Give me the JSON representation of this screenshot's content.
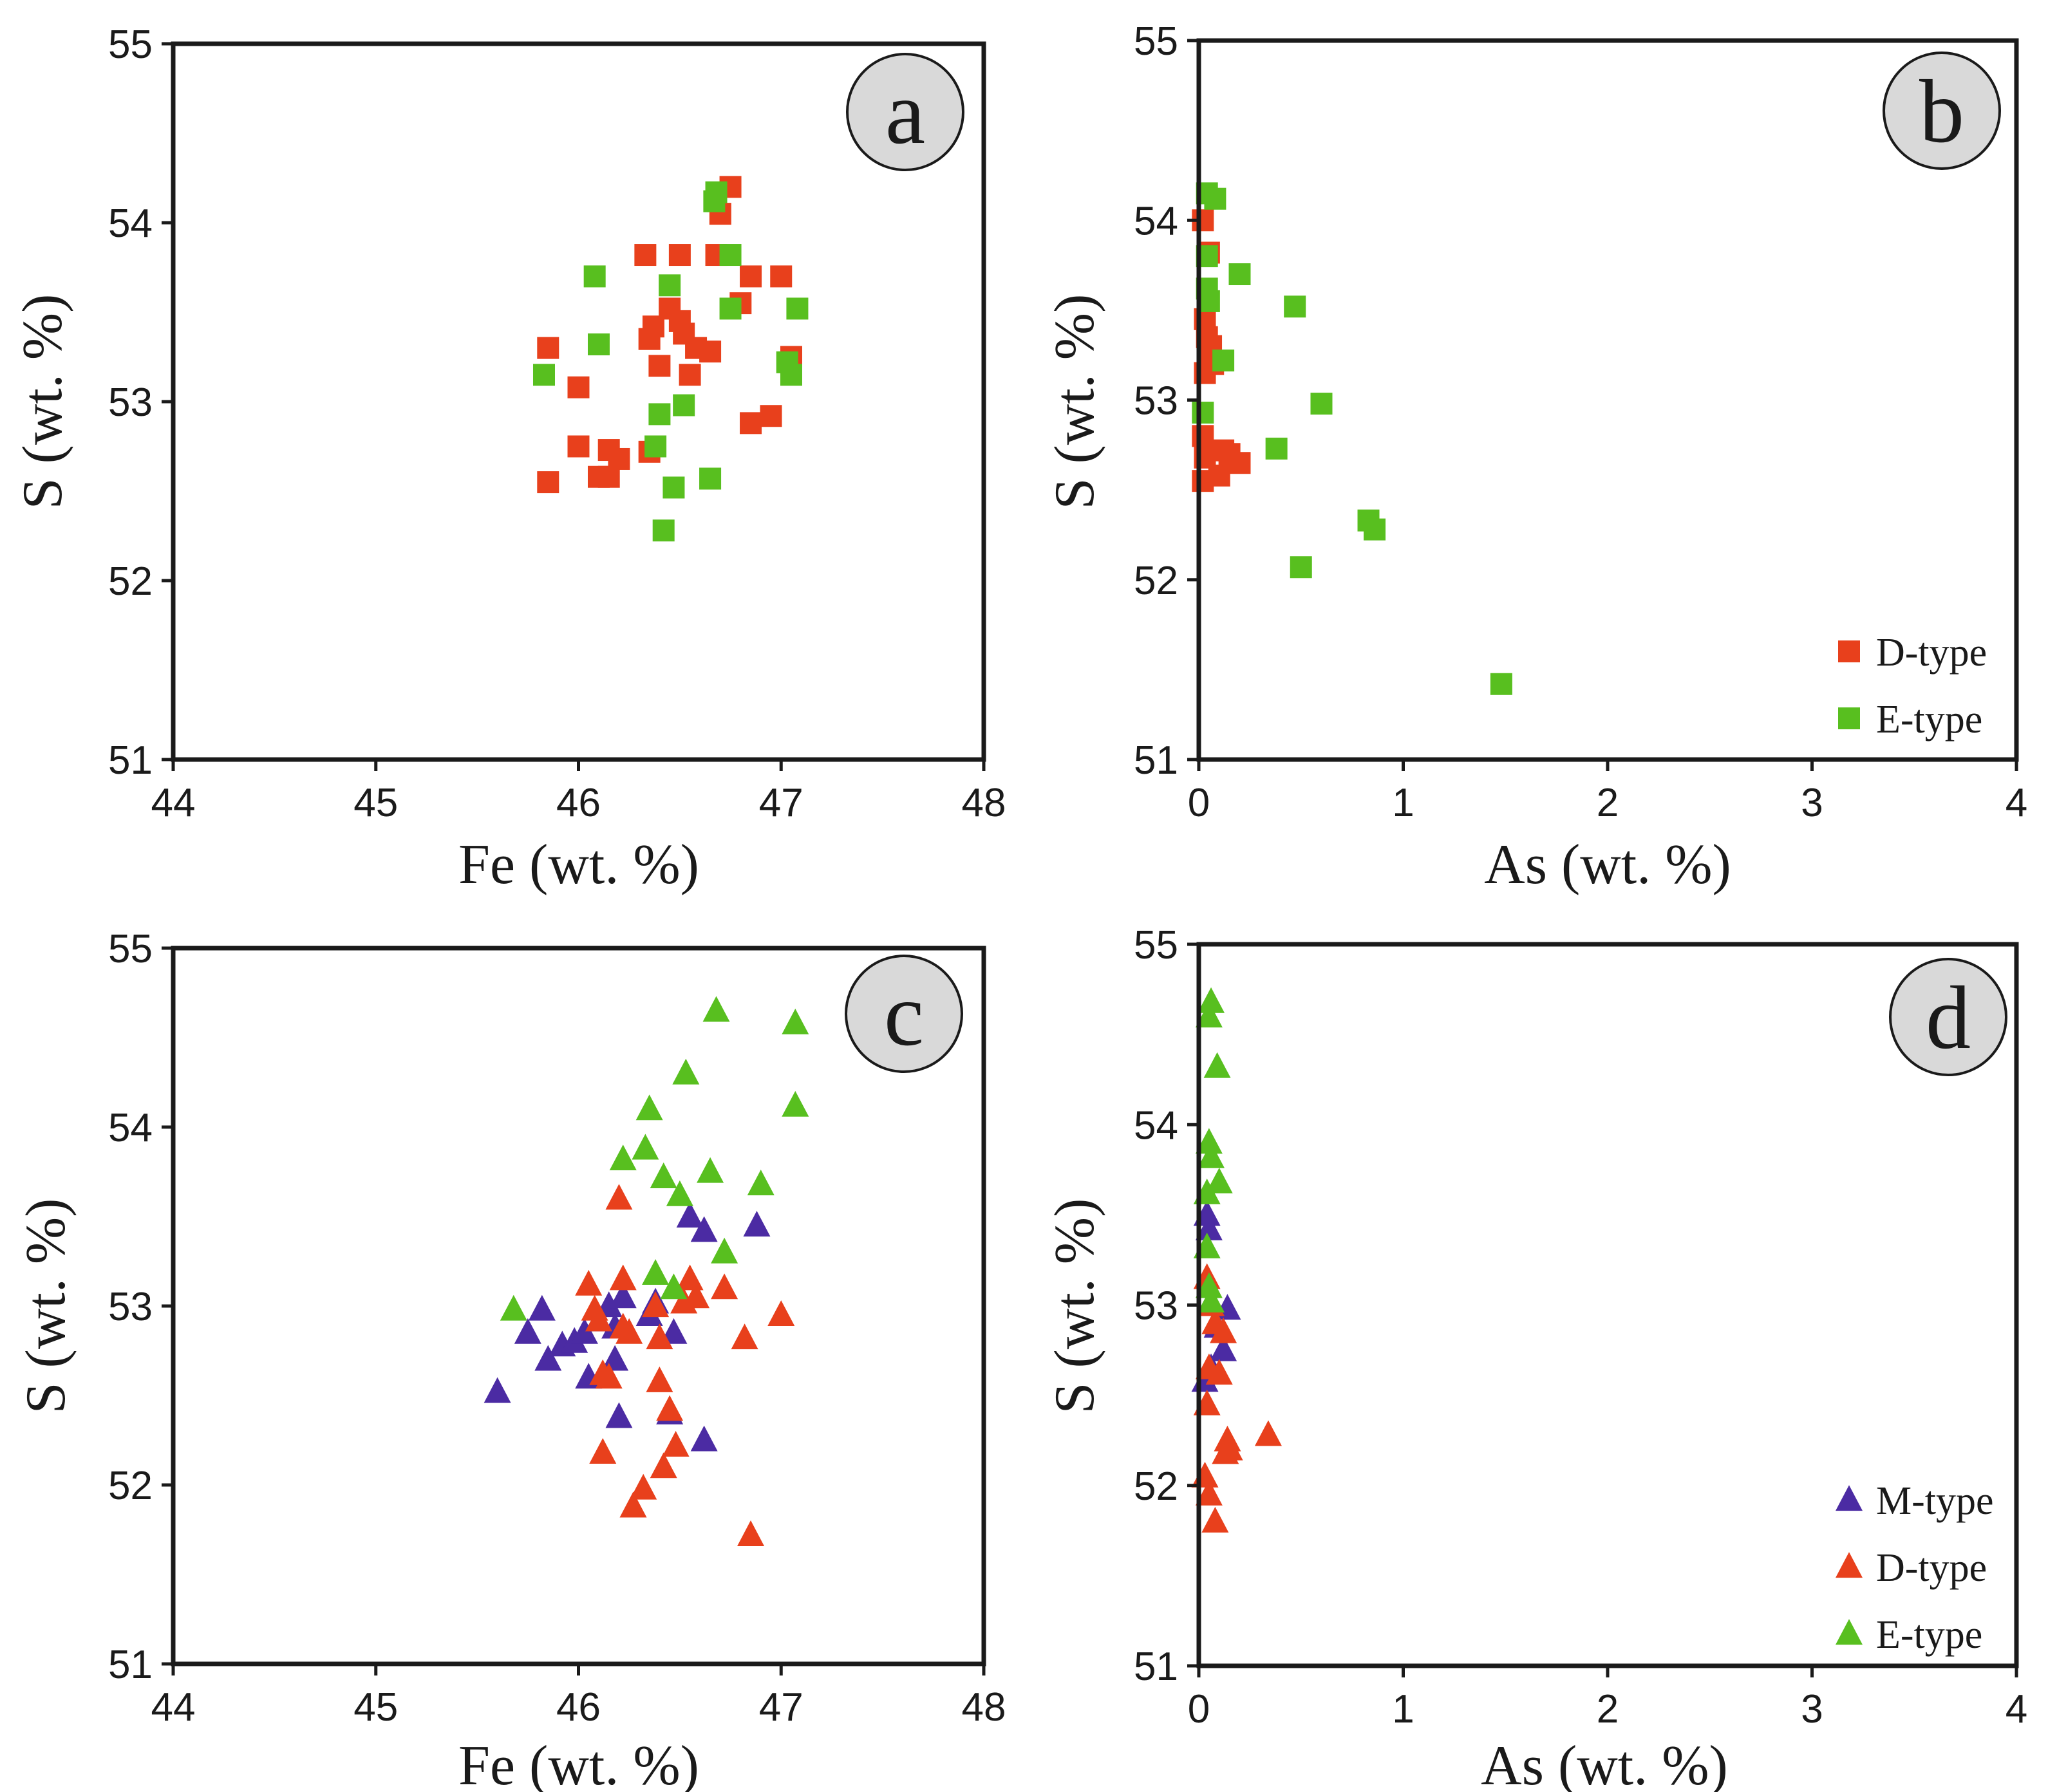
{
  "colors": {
    "d_type": "#e8401c",
    "e_type": "#58bf1f",
    "m_type": "#4b2ba3"
  },
  "chart_data": [
    {
      "id": "a",
      "panel_label": "a",
      "type": "scatter",
      "marker": "square",
      "xlabel": "Fe (wt. %)",
      "ylabel": "S (wt. %)",
      "xlim": [
        44,
        48
      ],
      "ylim": [
        51,
        55
      ],
      "xticks": [
        "44",
        "45",
        "46",
        "47",
        "48"
      ],
      "yticks": [
        "51",
        "52",
        "53",
        "54",
        "55"
      ],
      "legend": null,
      "series": [
        {
          "name": "D-type",
          "color_key": "d_type",
          "points": [
            [
              45.85,
              53.3
            ],
            [
              45.85,
              52.55
            ],
            [
              46.0,
              53.08
            ],
            [
              46.0,
              52.75
            ],
            [
              46.1,
              52.58
            ],
            [
              46.15,
              52.58
            ],
            [
              46.15,
              52.73
            ],
            [
              46.2,
              52.68
            ],
            [
              46.33,
              53.82
            ],
            [
              46.35,
              53.35
            ],
            [
              46.35,
              52.72
            ],
            [
              46.37,
              53.42
            ],
            [
              46.4,
              53.2
            ],
            [
              46.45,
              53.52
            ],
            [
              46.5,
              53.45
            ],
            [
              46.5,
              53.82
            ],
            [
              46.52,
              53.38
            ],
            [
              46.55,
              53.15
            ],
            [
              46.58,
              53.3
            ],
            [
              46.65,
              53.28
            ],
            [
              46.68,
              53.82
            ],
            [
              46.7,
              54.05
            ],
            [
              46.75,
              54.2
            ],
            [
              46.8,
              53.55
            ],
            [
              46.85,
              53.7
            ],
            [
              46.85,
              52.88
            ],
            [
              46.95,
              52.92
            ],
            [
              47.0,
              53.7
            ],
            [
              47.05,
              53.25
            ]
          ]
        },
        {
          "name": "E-type",
          "color_key": "e_type",
          "points": [
            [
              45.83,
              53.15
            ],
            [
              46.08,
              53.7
            ],
            [
              46.1,
              53.32
            ],
            [
              46.38,
              52.75
            ],
            [
              46.4,
              52.93
            ],
            [
              46.42,
              52.28
            ],
            [
              46.45,
              53.65
            ],
            [
              46.47,
              52.52
            ],
            [
              46.52,
              52.98
            ],
            [
              46.65,
              52.57
            ],
            [
              46.67,
              54.12
            ],
            [
              46.68,
              54.17
            ],
            [
              46.75,
              53.82
            ],
            [
              46.75,
              53.52
            ],
            [
              47.03,
              53.22
            ],
            [
              47.05,
              53.15
            ],
            [
              47.08,
              53.52
            ]
          ]
        }
      ]
    },
    {
      "id": "b",
      "panel_label": "b",
      "type": "scatter",
      "marker": "square",
      "xlabel": "As (wt. %)",
      "ylabel": "S (wt. %)",
      "xlim": [
        0,
        4
      ],
      "ylim": [
        51,
        55
      ],
      "xticks": [
        "0",
        "1",
        "2",
        "3",
        "4"
      ],
      "yticks": [
        "51",
        "52",
        "53",
        "54",
        "55"
      ],
      "legend": {
        "position": "bottom-right",
        "entries": [
          {
            "label": "D-type",
            "color_key": "d_type"
          },
          {
            "label": "E-type",
            "color_key": "e_type"
          }
        ]
      },
      "series": [
        {
          "name": "D-type",
          "color_key": "d_type",
          "points": [
            [
              0.02,
              54.0
            ],
            [
              0.05,
              53.82
            ],
            [
              0.03,
              53.45
            ],
            [
              0.04,
              53.35
            ],
            [
              0.05,
              53.25
            ],
            [
              0.03,
              53.15
            ],
            [
              0.07,
              53.2
            ],
            [
              0.02,
              52.8
            ],
            [
              0.03,
              52.68
            ],
            [
              0.1,
              52.58
            ],
            [
              0.02,
              52.55
            ],
            [
              0.12,
              52.72
            ],
            [
              0.15,
              52.7
            ],
            [
              0.2,
              52.65
            ],
            [
              0.06,
              53.3
            ]
          ]
        },
        {
          "name": "E-type",
          "color_key": "e_type",
          "points": [
            [
              0.04,
              54.15
            ],
            [
              0.08,
              54.12
            ],
            [
              0.04,
              53.8
            ],
            [
              0.04,
              53.62
            ],
            [
              0.05,
              53.55
            ],
            [
              0.2,
              53.7
            ],
            [
              0.12,
              53.22
            ],
            [
              0.47,
              53.52
            ],
            [
              0.02,
              52.93
            ],
            [
              0.6,
              52.98
            ],
            [
              0.38,
              52.73
            ],
            [
              0.83,
              52.33
            ],
            [
              0.86,
              52.28
            ],
            [
              0.5,
              52.07
            ],
            [
              1.48,
              51.42
            ]
          ]
        }
      ]
    },
    {
      "id": "c",
      "panel_label": "c",
      "type": "scatter",
      "marker": "triangle",
      "xlabel": "Fe (wt. %)",
      "ylabel": "S (wt. %)",
      "xlim": [
        44,
        48
      ],
      "ylim": [
        51,
        55
      ],
      "xticks": [
        "44",
        "45",
        "46",
        "47",
        "48"
      ],
      "yticks": [
        "51",
        "52",
        "53",
        "54",
        "55"
      ],
      "legend": null,
      "series": [
        {
          "name": "M-type",
          "color_key": "m_type",
          "points": [
            [
              45.6,
              52.52
            ],
            [
              45.75,
              52.85
            ],
            [
              45.82,
              52.98
            ],
            [
              45.85,
              52.7
            ],
            [
              45.92,
              52.78
            ],
            [
              45.98,
              52.8
            ],
            [
              46.03,
              52.85
            ],
            [
              46.05,
              52.6
            ],
            [
              46.1,
              52.92
            ],
            [
              46.15,
              53.0
            ],
            [
              46.18,
              52.88
            ],
            [
              46.18,
              52.7
            ],
            [
              46.2,
              52.38
            ],
            [
              46.22,
              53.05
            ],
            [
              46.35,
              52.95
            ],
            [
              46.38,
              53.02
            ],
            [
              46.45,
              52.4
            ],
            [
              46.47,
              52.85
            ],
            [
              46.55,
              53.5
            ],
            [
              46.62,
              53.42
            ],
            [
              46.62,
              52.25
            ],
            [
              46.88,
              53.45
            ]
          ]
        },
        {
          "name": "D-type",
          "color_key": "d_type",
          "points": [
            [
              46.05,
              53.12
            ],
            [
              46.08,
              52.98
            ],
            [
              46.1,
              52.92
            ],
            [
              46.12,
              52.62
            ],
            [
              46.12,
              52.18
            ],
            [
              46.15,
              52.6
            ],
            [
              46.2,
              53.6
            ],
            [
              46.22,
              53.15
            ],
            [
              46.22,
              52.88
            ],
            [
              46.25,
              52.85
            ],
            [
              46.27,
              51.88
            ],
            [
              46.32,
              51.98
            ],
            [
              46.38,
              53.0
            ],
            [
              46.4,
              52.82
            ],
            [
              46.4,
              52.58
            ],
            [
              46.42,
              52.1
            ],
            [
              46.45,
              52.42
            ],
            [
              46.48,
              52.22
            ],
            [
              46.52,
              53.02
            ],
            [
              46.55,
              53.15
            ],
            [
              46.58,
              53.05
            ],
            [
              46.72,
              53.1
            ],
            [
              46.82,
              52.82
            ],
            [
              46.85,
              51.72
            ],
            [
              47.0,
              52.95
            ]
          ]
        },
        {
          "name": "E-type",
          "color_key": "e_type",
          "points": [
            [
              45.68,
              52.98
            ],
            [
              46.22,
              53.82
            ],
            [
              46.33,
              53.88
            ],
            [
              46.35,
              54.1
            ],
            [
              46.38,
              53.18
            ],
            [
              46.42,
              53.72
            ],
            [
              46.47,
              53.1
            ],
            [
              46.5,
              53.62
            ],
            [
              46.53,
              54.3
            ],
            [
              46.65,
              53.75
            ],
            [
              46.68,
              54.65
            ],
            [
              46.72,
              53.3
            ],
            [
              46.9,
              53.68
            ],
            [
              47.07,
              54.58
            ],
            [
              47.07,
              54.12
            ]
          ]
        }
      ]
    },
    {
      "id": "d",
      "panel_label": "d",
      "type": "scatter",
      "marker": "triangle",
      "xlabel": "As (wt. %)",
      "ylabel": "S (wt. %)",
      "xlim": [
        0,
        4
      ],
      "ylim": [
        51,
        55
      ],
      "xticks": [
        "0",
        "1",
        "2",
        "3",
        "4"
      ],
      "yticks": [
        "51",
        "52",
        "53",
        "54",
        "55"
      ],
      "legend": {
        "position": "bottom-right",
        "entries": [
          {
            "label": "M-type",
            "color_key": "m_type"
          },
          {
            "label": "D-type",
            "color_key": "d_type"
          },
          {
            "label": "E-type",
            "color_key": "e_type"
          }
        ]
      },
      "series": [
        {
          "name": "M-type",
          "color_key": "m_type",
          "points": [
            [
              0.04,
              53.5
            ],
            [
              0.05,
              53.42
            ],
            [
              0.14,
              52.98
            ],
            [
              0.12,
              52.75
            ],
            [
              0.06,
              52.65
            ],
            [
              0.03,
              52.58
            ],
            [
              0.09,
              52.88
            ]
          ]
        },
        {
          "name": "D-type",
          "color_key": "d_type",
          "points": [
            [
              0.04,
              53.15
            ],
            [
              0.06,
              53.0
            ],
            [
              0.08,
              52.9
            ],
            [
              0.12,
              52.85
            ],
            [
              0.05,
              52.65
            ],
            [
              0.1,
              52.62
            ],
            [
              0.04,
              52.45
            ],
            [
              0.14,
              52.25
            ],
            [
              0.13,
              52.18
            ],
            [
              0.34,
              52.28
            ],
            [
              0.03,
              52.05
            ],
            [
              0.05,
              51.95
            ],
            [
              0.08,
              51.8
            ],
            [
              0.15,
              52.2
            ]
          ]
        },
        {
          "name": "E-type",
          "color_key": "e_type",
          "points": [
            [
              0.06,
              54.68
            ],
            [
              0.05,
              54.6
            ],
            [
              0.09,
              54.32
            ],
            [
              0.05,
              53.9
            ],
            [
              0.06,
              53.82
            ],
            [
              0.1,
              53.68
            ],
            [
              0.04,
              53.62
            ],
            [
              0.04,
              53.32
            ],
            [
              0.05,
              53.1
            ],
            [
              0.06,
              53.02
            ]
          ]
        }
      ]
    }
  ]
}
